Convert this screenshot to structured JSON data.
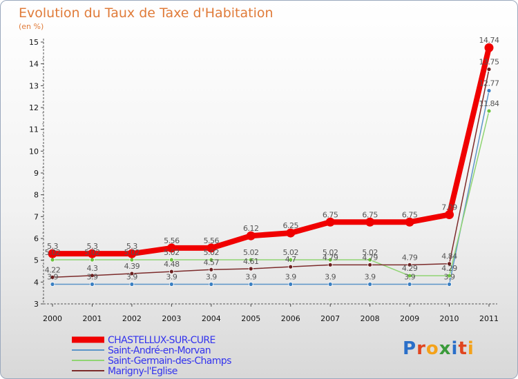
{
  "chart_data": {
    "type": "line",
    "title": "Evolution du Taux de Taxe d'Habitation",
    "subtitle": "(en %)",
    "x": [
      "2000",
      "2001",
      "2002",
      "2003",
      "2004",
      "2005",
      "2006",
      "2007",
      "2008",
      "2009",
      "2010",
      "2011"
    ],
    "ylim": [
      3,
      15
    ],
    "yticks": [
      3,
      4,
      5,
      6,
      7,
      8,
      9,
      10,
      11,
      12,
      13,
      14,
      15
    ],
    "series": [
      {
        "name": "Saint-André-en-Morvan",
        "color": "#5b94c8",
        "marker": "#3a7fc2",
        "width": 1.5,
        "values": [
          3.9,
          3.9,
          3.9,
          3.9,
          3.9,
          3.9,
          3.9,
          3.9,
          3.9,
          3.9,
          3.9,
          12.77
        ],
        "labels": [
          "3.9",
          "3.9",
          "3.9",
          "3.9",
          "3.9",
          "3.9",
          "3.9",
          "3.9",
          "3.9",
          "3.9",
          "3.9",
          "12.77"
        ]
      },
      {
        "name": "Saint-Germain-des-Champs",
        "color": "#8fd472",
        "marker": "#6cc23f",
        "width": 1.5,
        "values": [
          5.02,
          5.02,
          5.02,
          5.02,
          5.02,
          5.02,
          5.02,
          5.02,
          5.02,
          4.29,
          4.29,
          11.84
        ],
        "labels": [
          "5.02",
          "5.02",
          "5.02",
          "5.02",
          "5.02",
          "5.02",
          "5.02",
          "5.02",
          "5.02",
          "4.29",
          "4.29",
          "11.84"
        ]
      },
      {
        "name": "Marigny-l'Eglise",
        "color": "#7b2a2a",
        "marker": "#6b1f1f",
        "width": 1.5,
        "values": [
          4.22,
          4.3,
          4.39,
          4.48,
          4.57,
          4.61,
          4.7,
          4.79,
          4.79,
          4.79,
          4.84,
          13.75
        ],
        "labels": [
          "4.22",
          "4.3",
          "4.39",
          "4.48",
          "4.57",
          "4.61",
          "4.7",
          "4.79",
          "4.79",
          "4.79",
          "4.84",
          "13.75"
        ]
      },
      {
        "name": "CHASTELLUX-SUR-CURE",
        "color": "#f00000",
        "marker": "#f00000",
        "width": 8,
        "values": [
          5.3,
          5.3,
          5.3,
          5.56,
          5.56,
          6.12,
          6.25,
          6.75,
          6.75,
          6.75,
          7.09,
          14.74
        ],
        "labels": [
          "5.3",
          "5.3",
          "5.3",
          "5.56",
          "5.56",
          "6.12",
          "6.25",
          "6.75",
          "6.75",
          "6.75",
          "7.09",
          "14.74"
        ]
      }
    ],
    "legend": [
      {
        "name": "CHASTELLUX-SUR-CURE",
        "color": "#f00000",
        "thick": true
      },
      {
        "name": "Saint-André-en-Morvan",
        "color": "#5b94c8",
        "thick": false
      },
      {
        "name": "Saint-Germain-des-Champs",
        "color": "#8fd472",
        "thick": false
      },
      {
        "name": "Marigny-l'Eglise",
        "color": "#7b2a2a",
        "thick": false
      }
    ],
    "legend_text_color": "#3333ee"
  },
  "logo": {
    "text": "Proxiti",
    "letters": [
      {
        "ch": "P",
        "color": "#2a6fc9"
      },
      {
        "ch": "r",
        "color": "#e0451f"
      },
      {
        "ch": "o",
        "color": "#f4a21a"
      },
      {
        "ch": "x",
        "color": "#3a9a3a"
      },
      {
        "ch": "i",
        "color": "#2a6fc9"
      },
      {
        "ch": "t",
        "color": "#e0451f"
      },
      {
        "ch": "i",
        "color": "#f4a21a"
      }
    ]
  }
}
